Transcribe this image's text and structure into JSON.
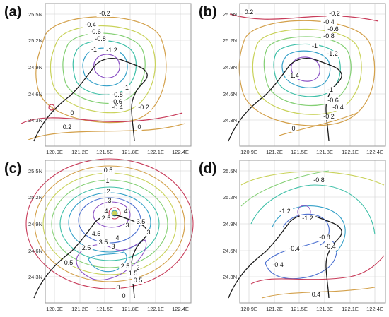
{
  "figure": {
    "lat_ticks": [
      "25.5N",
      "25.2N",
      "24.9N",
      "24.6N",
      "24.3N"
    ],
    "lon_ticks": [
      "120.9E",
      "121.2E",
      "121.5E",
      "121.8E",
      "122.1E",
      "122.4E"
    ],
    "colors": {
      "coast": "#1a1a1a",
      "grid": "#cfcfcf",
      "frame": "#9a9a9a",
      "levels": [
        "#c83c5a",
        "#d3a04a",
        "#c9d25a",
        "#83cf73",
        "#3fc0a8",
        "#34a0c8",
        "#4a6fd0",
        "#8a4fc4"
      ]
    },
    "panels": [
      {
        "label": "(a)",
        "contours": [
          {
            "text": "-0.2"
          },
          {
            "text": "-0.4"
          },
          {
            "text": "-0.6"
          },
          {
            "text": "-0.8"
          },
          {
            "text": "-1"
          },
          {
            "text": "-1.2"
          },
          {
            "text": "-1"
          },
          {
            "text": "-0.8"
          },
          {
            "text": "-0.6"
          },
          {
            "text": "-0.4"
          },
          {
            "text": "-0.2"
          },
          {
            "text": "0"
          },
          {
            "text": "0.2"
          },
          {
            "text": "0"
          }
        ]
      },
      {
        "label": "(b)",
        "contours": [
          {
            "text": "0.2"
          },
          {
            "text": "-0.2"
          },
          {
            "text": "-0.4"
          },
          {
            "text": "-0.6"
          },
          {
            "text": "-0.8"
          },
          {
            "text": "-1"
          },
          {
            "text": "-1.2"
          },
          {
            "text": "-1.4"
          },
          {
            "text": "-1"
          },
          {
            "text": "-0.6"
          },
          {
            "text": "-0.4"
          },
          {
            "text": "-0.2"
          },
          {
            "text": "0"
          }
        ]
      },
      {
        "label": "(c)",
        "contours": [
          {
            "text": "0.5"
          },
          {
            "text": "1"
          },
          {
            "text": "2"
          },
          {
            "text": "3"
          },
          {
            "text": "4"
          },
          {
            "text": "4"
          },
          {
            "text": "3.5"
          },
          {
            "text": "2.5"
          },
          {
            "text": "3"
          },
          {
            "text": "3"
          },
          {
            "text": "4.5"
          },
          {
            "text": "3.5"
          },
          {
            "text": "4"
          },
          {
            "text": "2.5"
          },
          {
            "text": "3"
          },
          {
            "text": "2"
          },
          {
            "text": "0.5"
          },
          {
            "text": "2.5"
          },
          {
            "text": "1.5"
          },
          {
            "text": "0.5"
          },
          {
            "text": "0"
          },
          {
            "text": "0"
          }
        ]
      },
      {
        "label": "(d)",
        "contours": [
          {
            "text": "-0.8"
          },
          {
            "text": "-1.2"
          },
          {
            "text": "-1.2"
          },
          {
            "text": "-0.4"
          },
          {
            "text": "-0.8"
          },
          {
            "text": "-0.4"
          },
          {
            "text": "-0.4"
          },
          {
            "text": "0.4"
          }
        ]
      }
    ]
  }
}
